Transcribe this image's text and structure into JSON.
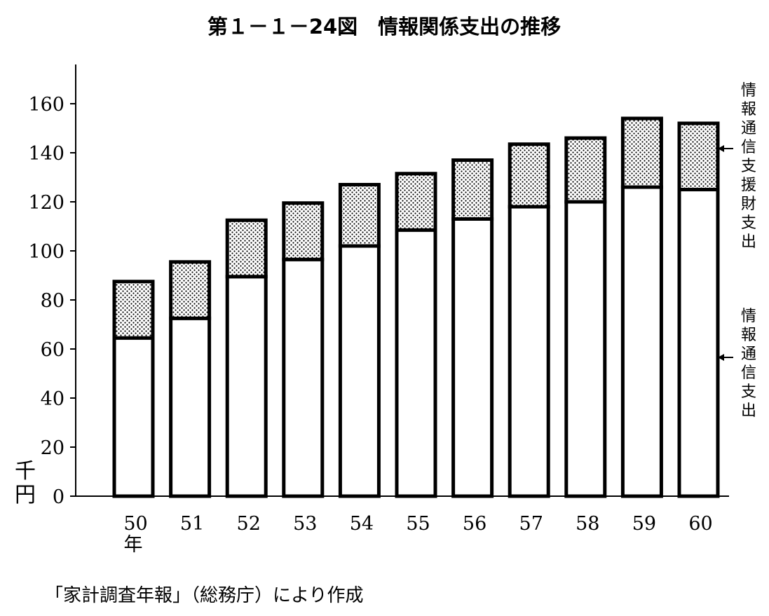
{
  "chart_data": {
    "type": "bar",
    "stacked": true,
    "title": "第１－１－24図　情報関係支出の推移",
    "ylabel": "千円",
    "ylim": [
      0,
      160
    ],
    "yticks": [
      0,
      20,
      40,
      60,
      80,
      100,
      120,
      140,
      160
    ],
    "categories": [
      "50",
      "51",
      "52",
      "53",
      "54",
      "55",
      "56",
      "57",
      "58",
      "59",
      "60"
    ],
    "x_unit": "年",
    "series": [
      {
        "name": "情報通信支出",
        "values": [
          64.5,
          72.5,
          89.5,
          96.5,
          102,
          108.5,
          113,
          118,
          120,
          126,
          125
        ],
        "fill": "#ffffff"
      },
      {
        "name": "情報通信支援財支出",
        "values": [
          23,
          23,
          23,
          23,
          25,
          23,
          24,
          25.5,
          26,
          28,
          27
        ],
        "fill": "dotted"
      }
    ],
    "totals": [
      87.5,
      95.5,
      112.5,
      119.5,
      127,
      131.5,
      137,
      143.5,
      146,
      154,
      152
    ],
    "legend_placement": "right",
    "grid": false,
    "source": "「家計調査年報」（総務庁）により作成"
  }
}
